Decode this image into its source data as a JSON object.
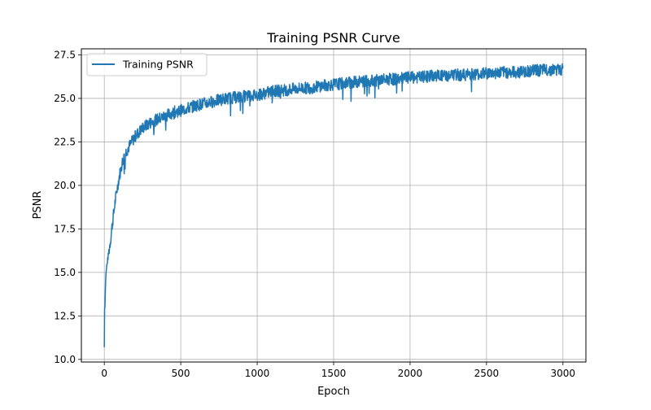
{
  "chart_data": {
    "type": "line",
    "title": "Training PSNR Curve",
    "xlabel": "Epoch",
    "ylabel": "PSNR",
    "xlim": [
      -150,
      3150
    ],
    "ylim": [
      9.85,
      27.85
    ],
    "xticks": [
      0,
      500,
      1000,
      1500,
      2000,
      2500,
      3000
    ],
    "xtick_labels": [
      "0",
      "500",
      "1000",
      "1500",
      "2000",
      "2500",
      "3000"
    ],
    "yticks": [
      10.0,
      12.5,
      15.0,
      17.5,
      20.0,
      22.5,
      25.0,
      27.5
    ],
    "ytick_labels": [
      "10.0",
      "12.5",
      "15.0",
      "17.5",
      "20.0",
      "22.5",
      "25.0",
      "27.5"
    ],
    "grid": true,
    "legend_position": "upper-left",
    "series": [
      {
        "name": "Training PSNR",
        "color": "#1f77b4",
        "x": [
          0,
          1,
          3,
          5,
          10,
          15,
          20,
          30,
          40,
          50,
          60,
          70,
          80,
          90,
          100,
          120,
          140,
          160,
          180,
          200,
          250,
          300,
          350,
          400,
          450,
          500,
          550,
          600,
          650,
          700,
          750,
          800,
          850,
          900,
          950,
          1000,
          1050,
          1100,
          1150,
          1200,
          1250,
          1300,
          1350,
          1400,
          1450,
          1500,
          1550,
          1600,
          1650,
          1700,
          1750,
          1800,
          1850,
          1900,
          1950,
          2000,
          2050,
          2100,
          2150,
          2200,
          2250,
          2300,
          2350,
          2400,
          2450,
          2500,
          2550,
          2600,
          2650,
          2700,
          2750,
          2800,
          2850,
          2900,
          2950,
          3000
        ],
        "y": [
          10.7,
          13.6,
          12.5,
          13.5,
          14.8,
          15.3,
          15.6,
          16.2,
          16.8,
          17.6,
          18.3,
          19.0,
          19.6,
          20.1,
          20.6,
          21.4,
          21.9,
          22.2,
          22.5,
          22.8,
          23.3,
          23.6,
          23.8,
          24.0,
          24.2,
          24.3,
          24.45,
          24.6,
          24.7,
          24.8,
          24.9,
          25.0,
          25.05,
          25.1,
          25.15,
          25.2,
          25.3,
          25.4,
          25.45,
          25.5,
          25.55,
          25.6,
          25.6,
          25.7,
          25.75,
          25.8,
          25.85,
          25.9,
          25.95,
          26.0,
          26.0,
          26.05,
          26.1,
          26.1,
          26.15,
          26.2,
          26.2,
          26.25,
          26.3,
          26.3,
          26.3,
          26.35,
          26.35,
          26.4,
          26.4,
          26.45,
          26.45,
          26.5,
          26.5,
          26.5,
          26.55,
          26.6,
          26.6,
          26.65,
          26.65,
          26.65
        ],
        "noise_amplitude": 0.35
      }
    ]
  }
}
